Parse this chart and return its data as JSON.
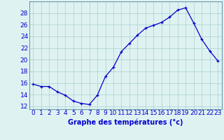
{
  "hours": [
    0,
    1,
    2,
    3,
    4,
    5,
    6,
    7,
    8,
    9,
    10,
    11,
    12,
    13,
    14,
    15,
    16,
    17,
    18,
    19,
    20,
    21,
    22,
    23
  ],
  "temperatures": [
    15.8,
    15.4,
    15.4,
    14.5,
    13.9,
    12.9,
    12.5,
    12.3,
    13.9,
    17.1,
    18.7,
    21.4,
    22.8,
    24.2,
    25.4,
    25.9,
    26.4,
    27.3,
    28.5,
    28.9,
    26.3,
    23.5,
    21.5,
    19.8
  ],
  "line_color": "#0000cc",
  "marker": "+",
  "bg_color": "#dff2f2",
  "grid_color": "#aacfcf",
  "xlabel": "Graphe des températures (°c)",
  "xlabel_color": "#0000cc",
  "xlabel_fontsize": 7,
  "tick_color": "#0000cc",
  "tick_fontsize": 6.5,
  "ylim": [
    11.5,
    30
  ],
  "yticks": [
    12,
    14,
    16,
    18,
    20,
    22,
    24,
    26,
    28
  ],
  "xlim": [
    -0.5,
    23.5
  ],
  "spine_color": "#6699aa"
}
